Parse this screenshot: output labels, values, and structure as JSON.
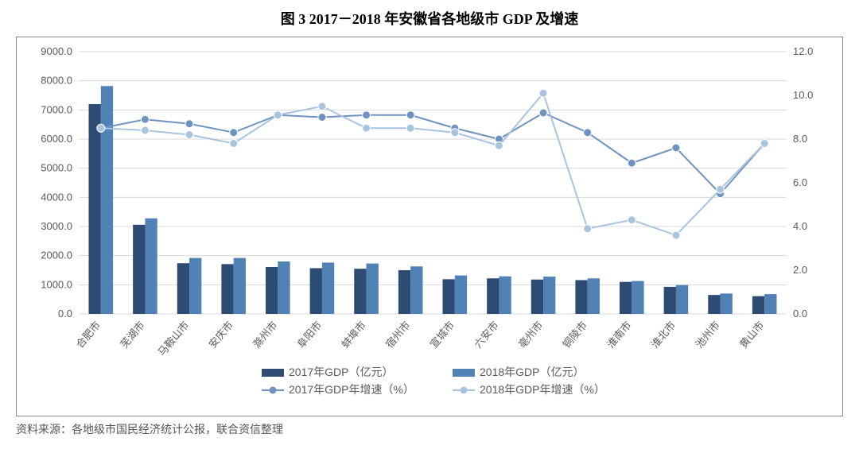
{
  "title": "图 3  2017－2018 年安徽省各地级市 GDP 及增速",
  "source": "资料来源：各地级市国民经济统计公报，联合资信整理",
  "chart": {
    "type": "bar+line-dual-axis",
    "background_color": "#ffffff",
    "grid_color": "#d9d9d9",
    "categories": [
      "合肥市",
      "芜湖市",
      "马鞍山市",
      "安庆市",
      "滁州市",
      "阜阳市",
      "蚌埠市",
      "宿州市",
      "宣城市",
      "六安市",
      "亳州市",
      "铜陵市",
      "淮南市",
      "淮北市",
      "池州市",
      "黄山市"
    ],
    "y_left": {
      "min": 0,
      "max": 9000,
      "step": 1000,
      "decimals": 1
    },
    "y_right": {
      "min": 0,
      "max": 12,
      "step": 2,
      "decimals": 1
    },
    "bar_series": [
      {
        "name": "2017年GDP（亿元）",
        "color": "#2e4b73",
        "values": [
          7200,
          3060,
          1740,
          1710,
          1610,
          1570,
          1550,
          1500,
          1190,
          1220,
          1180,
          1160,
          1100,
          930,
          650,
          610
        ]
      },
      {
        "name": "2018年GDP（亿元）",
        "color": "#5082b6",
        "values": [
          7820,
          3280,
          1920,
          1920,
          1800,
          1760,
          1730,
          1630,
          1320,
          1290,
          1280,
          1220,
          1130,
          990,
          700,
          680
        ]
      }
    ],
    "line_series": [
      {
        "name": "2017年GDP年增速（%）",
        "color": "#6e93c0",
        "marker": "circle",
        "values": [
          8.5,
          8.9,
          8.7,
          8.3,
          9.1,
          9.0,
          9.1,
          9.1,
          8.5,
          8.0,
          9.2,
          8.3,
          6.9,
          7.6,
          5.5,
          7.8
        ]
      },
      {
        "name": "2018年GDP年增速（%）",
        "color": "#a9c4de",
        "marker": "circle",
        "values": [
          8.5,
          8.4,
          8.2,
          7.8,
          9.1,
          9.5,
          8.5,
          8.5,
          8.3,
          7.7,
          10.1,
          3.9,
          4.3,
          3.6,
          5.7,
          7.8
        ]
      }
    ],
    "bar_group_width_ratio": 0.55,
    "marker_radius": 5,
    "line_width": 2,
    "axis_text_color": "#595959",
    "axis_fontsize": 13,
    "legend_fontsize": 14
  }
}
